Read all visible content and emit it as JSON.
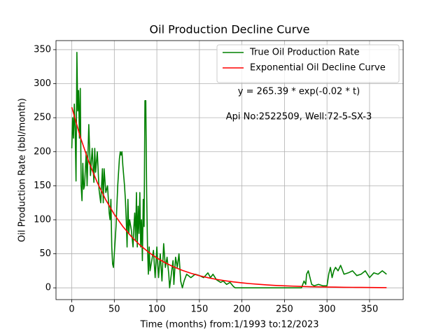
{
  "chart_data": {
    "type": "line",
    "title": "Oil Production Decline Curve",
    "xlabel": "Time (months) from:1/1993 to:12/2023",
    "ylabel": "Oil Production Rate (bbl/month)",
    "annotations": [
      "y = 265.39 * exp(-0.02 * t)",
      "Api No:2522509, Well:72-5-SX-3"
    ],
    "xlim": [
      -18.55,
      389.55
    ],
    "xticks": [
      0,
      50,
      100,
      150,
      200,
      250,
      300,
      350
    ],
    "ylim": [
      -17.3,
      363.3
    ],
    "yticks": [
      0,
      50,
      100,
      150,
      200,
      250,
      300,
      350
    ],
    "grid": true,
    "legend": "upper right",
    "series": [
      {
        "name": "True Oil Production Rate",
        "color": "#008000",
        "x": [
          0,
          1,
          2,
          3,
          4,
          5,
          6,
          7,
          8,
          9,
          10,
          11,
          12,
          13,
          14,
          15,
          17,
          18,
          20,
          22,
          24,
          26,
          27,
          28,
          30,
          32,
          34,
          36,
          37,
          38,
          40,
          42,
          44,
          45,
          46,
          47,
          48,
          49,
          50,
          52,
          54,
          56,
          57,
          58,
          59,
          60,
          62,
          63,
          64,
          65,
          66,
          67,
          68,
          70,
          72,
          73,
          74,
          75,
          76,
          77,
          78,
          79,
          80,
          81,
          82,
          83,
          84,
          85,
          86,
          87,
          88,
          89,
          90,
          91,
          92,
          94,
          96,
          98,
          100,
          102,
          104,
          106,
          108,
          110,
          112,
          114,
          115,
          117,
          119,
          120,
          122,
          124,
          126,
          128,
          130,
          132,
          135,
          140,
          145,
          150,
          155,
          160,
          163,
          166,
          170,
          175,
          178,
          182,
          186,
          190,
          192,
          200,
          220,
          250,
          270,
          273,
          275,
          276,
          278,
          280,
          282,
          285,
          290,
          295,
          300,
          302,
          304,
          306,
          308,
          310,
          313,
          316,
          320,
          325,
          330,
          335,
          340,
          345,
          350,
          355,
          360,
          365,
          370
        ],
        "values": [
          205,
          250,
          220,
          270,
          230,
          157,
          346,
          260,
          290,
          220,
          293,
          150,
          128,
          183,
          145,
          150,
          200,
          150,
          240,
          165,
          205,
          155,
          205,
          170,
          200,
          145,
          125,
          175,
          125,
          175,
          140,
          150,
          110,
          100,
          130,
          60,
          35,
          30,
          50,
          90,
          150,
          190,
          200,
          195,
          200,
          180,
          150,
          130,
          100,
          60,
          130,
          80,
          100,
          85,
          60,
          90,
          110,
          70,
          140,
          60,
          120,
          80,
          140,
          60,
          100,
          40,
          130,
          90,
          275,
          275,
          140,
          60,
          20,
          60,
          25,
          40,
          55,
          15,
          60,
          15,
          50,
          10,
          65,
          30,
          45,
          20,
          0,
          20,
          40,
          5,
          45,
          30,
          50,
          10,
          0,
          10,
          20,
          15,
          20,
          18,
          15,
          22,
          15,
          20,
          12,
          8,
          10,
          5,
          8,
          2,
          0,
          0,
          0,
          0,
          0,
          10,
          5,
          20,
          25,
          15,
          5,
          3,
          5,
          3,
          3,
          20,
          30,
          15,
          25,
          30,
          25,
          33,
          20,
          22,
          25,
          18,
          20,
          25,
          15,
          22,
          20,
          25,
          20
        ]
      },
      {
        "name": "Exponential Oil Decline Curve",
        "color": "#ff0000",
        "x": [
          0,
          10,
          20,
          30,
          40,
          50,
          60,
          70,
          80,
          90,
          100,
          110,
          120,
          130,
          140,
          150,
          160,
          170,
          180,
          190,
          200,
          210,
          220,
          230,
          240,
          250,
          260,
          270,
          280,
          290,
          300,
          310,
          320,
          330,
          340,
          350,
          360,
          370
        ],
        "values": [
          265.4,
          221.7,
          185.2,
          154.7,
          129.2,
          107.9,
          90.2,
          75.3,
          62.9,
          52.6,
          43.9,
          36.7,
          30.6,
          25.6,
          21.4,
          17.8,
          14.9,
          12.4,
          10.4,
          8.7,
          7.3,
          6.1,
          5.1,
          4.2,
          3.5,
          2.9,
          2.5,
          2.1,
          1.7,
          1.4,
          1.2,
          1.0,
          0.8,
          0.7,
          0.6,
          0.5,
          0.4,
          0.3
        ]
      }
    ]
  }
}
